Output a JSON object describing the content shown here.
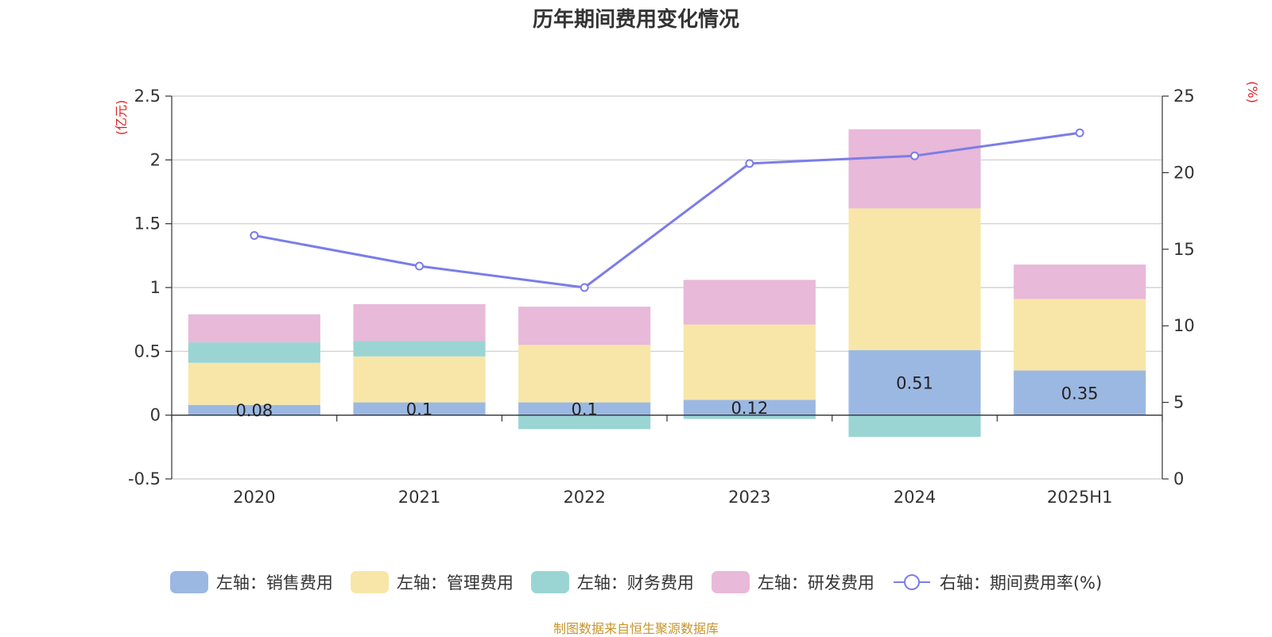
{
  "chart_data": {
    "title": "历年期间费用变化情况",
    "type": "bar",
    "stacked": true,
    "categories": [
      "2020",
      "2021",
      "2022",
      "2023",
      "2024",
      "2025H1"
    ],
    "left_axis": {
      "unit": "(亿元)",
      "ylim": [
        -0.5,
        2.5
      ],
      "ticks": [
        "-0.5",
        "0",
        "0.5",
        "1",
        "1.5",
        "2",
        "2.5"
      ]
    },
    "right_axis": {
      "unit": "(%)",
      "ylim": [
        0,
        25
      ],
      "ticks": [
        "0",
        "5",
        "10",
        "15",
        "20",
        "25"
      ]
    },
    "grid": true,
    "legend_position": "bottom",
    "series": [
      {
        "name": "左轴：销售费用",
        "axis": "left",
        "color": "#9bb8e2",
        "values": [
          0.08,
          0.1,
          0.1,
          0.12,
          0.51,
          0.35
        ],
        "labels": [
          "0.08",
          "0.1",
          "0.1",
          "0.12",
          "0.51",
          "0.35"
        ]
      },
      {
        "name": "左轴：管理费用",
        "axis": "left",
        "color": "#f8e6a8",
        "values": [
          0.33,
          0.36,
          0.45,
          0.59,
          1.11,
          0.56
        ]
      },
      {
        "name": "左轴：财务费用",
        "axis": "left",
        "color": "#9ad5d3",
        "values": [
          0.16,
          0.12,
          -0.11,
          -0.03,
          -0.17,
          0.0
        ]
      },
      {
        "name": "左轴：研发费用",
        "axis": "left",
        "color": "#e8b9d9",
        "values": [
          0.22,
          0.29,
          0.3,
          0.35,
          0.62,
          0.27
        ]
      },
      {
        "name": "右轴：期间费用率(%)",
        "type": "line",
        "axis": "right",
        "color": "#7b7de8",
        "values": [
          15.9,
          13.9,
          12.5,
          20.6,
          21.1,
          22.6
        ]
      }
    ]
  },
  "source_note": "制图数据来自恒生聚源数据库"
}
